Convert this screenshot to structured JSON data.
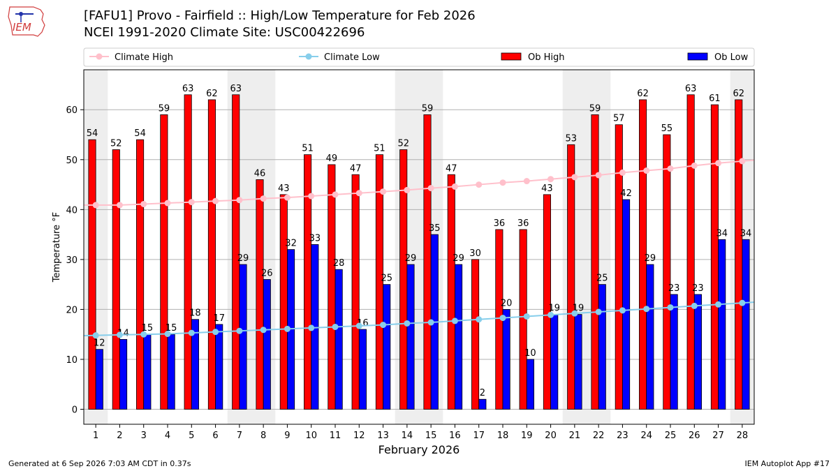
{
  "header": {
    "logo_text": "IEM",
    "title_line1": "[FAFU1] Provo - Fairfield :: High/Low Temperature for Feb 2026",
    "title_line2": "NCEI 1991-2020 Climate Site: USC00422696"
  },
  "footer": {
    "generated": "Generated at 6 Sep 2026 7:03 AM CDT in 0.37s",
    "app": "IEM Autoplot App #17"
  },
  "chart_data": {
    "type": "bar",
    "xlabel": "February 2026",
    "ylabel": "Temperature °F",
    "ylim": [
      -3,
      68
    ],
    "yticks": [
      0,
      10,
      20,
      30,
      40,
      50,
      60
    ],
    "grid": "horizontal",
    "legend_placement": "top",
    "categories": [
      "1",
      "2",
      "3",
      "4",
      "5",
      "6",
      "7",
      "8",
      "9",
      "10",
      "11",
      "12",
      "13",
      "14",
      "15",
      "16",
      "17",
      "18",
      "19",
      "20",
      "21",
      "22",
      "23",
      "24",
      "25",
      "26",
      "27",
      "28"
    ],
    "shaded_days": [
      1,
      7,
      8,
      14,
      15,
      21,
      22,
      28
    ],
    "series": [
      {
        "name": "Climate High",
        "kind": "line",
        "color": "#ffc0cb",
        "values": [
          40.9,
          40.9,
          41.1,
          41.3,
          41.5,
          41.7,
          41.9,
          42.2,
          42.4,
          42.7,
          43.0,
          43.3,
          43.6,
          43.9,
          44.3,
          44.6,
          45.0,
          45.4,
          45.7,
          46.1,
          46.5,
          46.9,
          47.4,
          47.8,
          48.2,
          48.8,
          49.3,
          49.7
        ]
      },
      {
        "name": "Climate Low",
        "kind": "line",
        "color": "#87ceeb",
        "values": [
          14.8,
          14.9,
          15.0,
          15.1,
          15.3,
          15.5,
          15.7,
          15.9,
          16.1,
          16.3,
          16.5,
          16.7,
          16.9,
          17.2,
          17.4,
          17.7,
          18.0,
          18.3,
          18.6,
          18.9,
          19.2,
          19.5,
          19.8,
          20.1,
          20.4,
          20.7,
          21.0,
          21.3
        ]
      },
      {
        "name": "Ob High",
        "kind": "bar",
        "color": "#ff0000",
        "values": [
          54,
          52,
          54,
          59,
          63,
          62,
          63,
          46,
          43,
          51,
          49,
          47,
          51,
          52,
          59,
          47,
          30,
          36,
          36,
          43,
          53,
          59,
          57,
          62,
          55,
          63,
          61,
          62
        ]
      },
      {
        "name": "Ob Low",
        "kind": "bar",
        "color": "#0000ff",
        "values": [
          12,
          14,
          15,
          15,
          18,
          17,
          29,
          26,
          32,
          33,
          28,
          16,
          25,
          29,
          35,
          29,
          2,
          20,
          10,
          19,
          19,
          25,
          42,
          29,
          23,
          23,
          34,
          34
        ]
      }
    ]
  }
}
